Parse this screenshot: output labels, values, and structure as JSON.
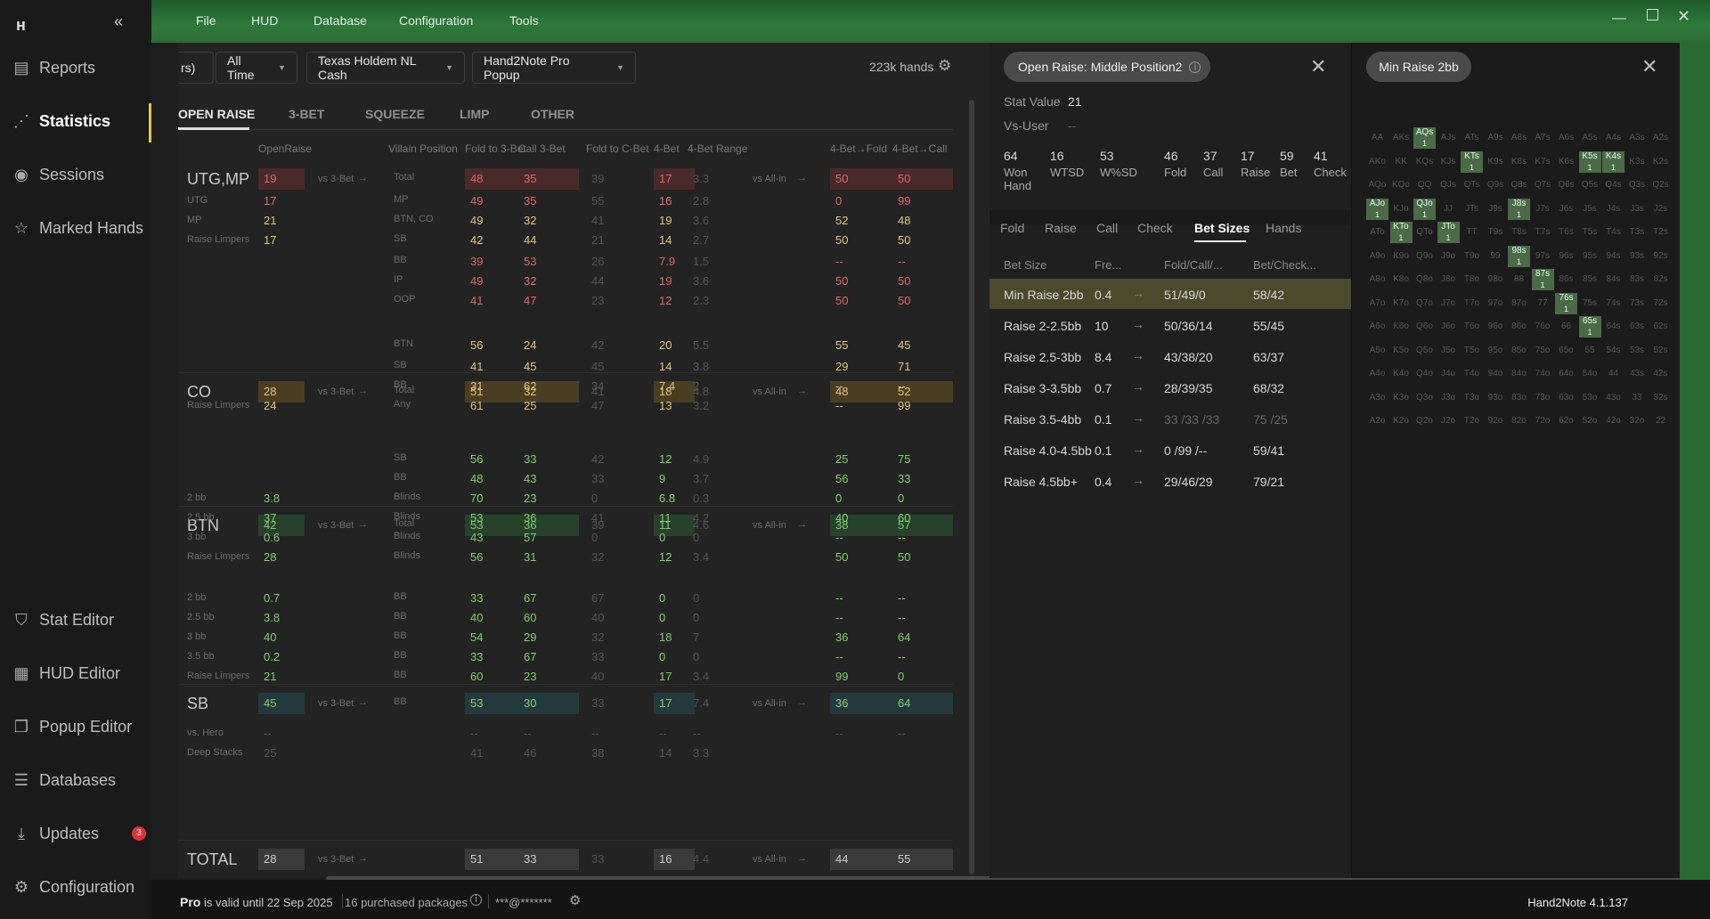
{
  "app": {
    "version": "Hand2Note 4.1.137"
  },
  "menu": [
    "File",
    "HUD",
    "Database",
    "Configuration",
    "Tools"
  ],
  "sidebar": {
    "items": [
      {
        "label": "Reports",
        "icon": "document-icon"
      },
      {
        "label": "Statistics",
        "icon": "share-icon"
      },
      {
        "label": "Sessions",
        "icon": "broadcast-icon"
      },
      {
        "label": "Marked Hands",
        "icon": "star-icon"
      },
      {
        "label": "Stat Editor",
        "icon": "filter-icon"
      },
      {
        "label": "HUD Editor",
        "icon": "layout-icon"
      },
      {
        "label": "Popup Editor",
        "icon": "popup-icon"
      },
      {
        "label": "Databases",
        "icon": "database-icon"
      },
      {
        "label": "Updates",
        "icon": "download-icon",
        "badge": "3"
      },
      {
        "label": "Configuration",
        "icon": "gear-icon"
      }
    ]
  },
  "filters": {
    "partial": "rs)",
    "time": "All Time",
    "game": "Texas Holdem NL Cash",
    "popup": "Hand2Note Pro Popup",
    "hands": "223k hands"
  },
  "tabs": [
    "OPEN RAISE",
    "3-BET",
    "SQUEEZE",
    "LIMP",
    "OTHER"
  ],
  "headers": {
    "openraise": "OpenRaise",
    "villain": "Villain Position",
    "f3b": "Fold to 3-Bet",
    "c3b": "Call 3-Bet",
    "fcb": "Fold to C-Bet",
    "fb": "4-Bet",
    "fbr": "4-Bet Range",
    "ff": "4-Bet→Fold",
    "fc": "4-Bet→Call"
  },
  "groups": [
    {
      "pos": "UTG,MP",
      "or": "19",
      "vs": "vs 3-Bet",
      "vp": "Total",
      "f3b": "48",
      "c3b": "35",
      "fcb": "39",
      "fb": "17",
      "fbr": "3.3",
      "ai": "vs All-in",
      "ff": "50",
      "fc": "50"
    },
    {
      "pos": "CO",
      "or": "28",
      "vs": "vs 3-Bet",
      "vp": "Total",
      "f3b": "51",
      "c3b": "32",
      "fcb": "41",
      "fb": "18",
      "fbr": "4.8",
      "ai": "vs All-in",
      "ff": "48",
      "fc": "52"
    },
    {
      "pos": "BTN",
      "or": "42",
      "vs": "vs 3-Bet",
      "vp": "Total",
      "f3b": "53",
      "c3b": "36",
      "fcb": "39",
      "fb": "11",
      "fbr": "4.6",
      "ai": "vs All-in",
      "ff": "38",
      "fc": "57"
    },
    {
      "pos": "SB",
      "or": "45",
      "vs": "vs 3-Bet",
      "vp": "BB",
      "f3b": "53",
      "c3b": "30",
      "fcb": "33",
      "fb": "17",
      "fbr": "7.4",
      "ai": "vs All-in",
      "ff": "36",
      "fc": "64"
    },
    {
      "pos": "TOTAL",
      "or": "28",
      "vs": "vs 3-Bet",
      "vp": "",
      "f3b": "51",
      "c3b": "33",
      "fcb": "33",
      "fb": "16",
      "fbr": "4.4",
      "ai": "vs All-in",
      "ff": "44",
      "fc": "55"
    }
  ],
  "subrows": [
    {
      "l": "UTG",
      "or": "17",
      "vp": "MP",
      "f3b": "49",
      "c3b": "35",
      "fcb": "55",
      "fb": "16",
      "fbr": "2.8",
      "ff": "0",
      "fc": "99"
    },
    {
      "l": "MP",
      "or": "21",
      "vp": "BTN, CO",
      "f3b": "49",
      "c3b": "32",
      "fcb": "41",
      "fb": "19",
      "fbr": "3.6",
      "ff": "52",
      "fc": "48"
    },
    {
      "l": "Raise Limpers",
      "or": "17",
      "vp": "SB",
      "f3b": "42",
      "c3b": "44",
      "fcb": "21",
      "fb": "14",
      "fbr": "2.7",
      "ff": "50",
      "fc": "50"
    },
    {
      "l": "",
      "or": "",
      "vp": "BB",
      "f3b": "39",
      "c3b": "53",
      "fcb": "26",
      "fb": "7.9",
      "fbr": "1.5",
      "ff": "--",
      "fc": "--"
    },
    {
      "l": "",
      "or": "",
      "vp": "IP",
      "f3b": "49",
      "c3b": "32",
      "fcb": "44",
      "fb": "19",
      "fbr": "3.6",
      "ff": "50",
      "fc": "50"
    },
    {
      "l": "",
      "or": "",
      "vp": "OOP",
      "f3b": "41",
      "c3b": "47",
      "fcb": "23",
      "fb": "12",
      "fbr": "2.3",
      "ff": "50",
      "fc": "50"
    },
    {
      "l": "",
      "or": "",
      "vp": "BTN",
      "f3b": "56",
      "c3b": "24",
      "fcb": "42",
      "fb": "20",
      "fbr": "5.5",
      "ff": "55",
      "fc": "45"
    },
    {
      "l": "",
      "or": "",
      "vp": "SB",
      "f3b": "41",
      "c3b": "45",
      "fcb": "45",
      "fb": "14",
      "fbr": "3.8",
      "ff": "29",
      "fc": "71"
    },
    {
      "l": "",
      "or": "",
      "vp": "BB",
      "f3b": "31",
      "c3b": "62",
      "fcb": "34",
      "fb": "7.4",
      "fbr": "2",
      "ff": "--",
      "fc": "--"
    },
    {
      "l": "Raise Limpers",
      "or": "24",
      "vp": "Any",
      "f3b": "61",
      "c3b": "25",
      "fcb": "47",
      "fb": "13",
      "fbr": "3.2",
      "ff": "--",
      "fc": "99"
    },
    {
      "l": "",
      "or": "",
      "vp": "SB",
      "f3b": "56",
      "c3b": "33",
      "fcb": "42",
      "fb": "12",
      "fbr": "4.9",
      "ff": "25",
      "fc": "75"
    },
    {
      "l": "",
      "or": "",
      "vp": "BB",
      "f3b": "48",
      "c3b": "43",
      "fcb": "33",
      "fb": "9",
      "fbr": "3.7",
      "ff": "56",
      "fc": "33"
    },
    {
      "l": "2 bb",
      "or": "3.8",
      "vp": "Blinds",
      "f3b": "70",
      "c3b": "23",
      "fcb": "0",
      "fb": "6.8",
      "fbr": "0.3",
      "ff": "0",
      "fc": "0"
    },
    {
      "l": "2.5 bb",
      "or": "37",
      "vp": "Blinds",
      "f3b": "53",
      "c3b": "36",
      "fcb": "41",
      "fb": "11",
      "fbr": "4.2",
      "ff": "40",
      "fc": "60"
    },
    {
      "l": "3 bb",
      "or": "0.6",
      "vp": "Blinds",
      "f3b": "43",
      "c3b": "57",
      "fcb": "0",
      "fb": "0",
      "fbr": "0",
      "ff": "--",
      "fc": "--"
    },
    {
      "l": "Raise Limpers",
      "or": "28",
      "vp": "Blinds",
      "f3b": "56",
      "c3b": "31",
      "fcb": "32",
      "fb": "12",
      "fbr": "3.4",
      "ff": "50",
      "fc": "50"
    },
    {
      "l": "2 bb",
      "or": "0.7",
      "vp": "BB",
      "f3b": "33",
      "c3b": "67",
      "fcb": "67",
      "fb": "0",
      "fbr": "0",
      "ff": "--",
      "fc": "--"
    },
    {
      "l": "2.5 bb",
      "or": "3.8",
      "vp": "BB",
      "f3b": "40",
      "c3b": "60",
      "fcb": "40",
      "fb": "0",
      "fbr": "0",
      "ff": "--",
      "fc": "--"
    },
    {
      "l": "3 bb",
      "or": "40",
      "vp": "BB",
      "f3b": "54",
      "c3b": "29",
      "fcb": "32",
      "fb": "18",
      "fbr": "7",
      "ff": "36",
      "fc": "64"
    },
    {
      "l": "3.5 bb",
      "or": "0.2",
      "vp": "BB",
      "f3b": "33",
      "c3b": "67",
      "fcb": "33",
      "fb": "0",
      "fbr": "0",
      "ff": "--",
      "fc": "--"
    },
    {
      "l": "Raise Limpers",
      "or": "21",
      "vp": "BB",
      "f3b": "60",
      "c3b": "23",
      "fcb": "40",
      "fb": "17",
      "fbr": "3.4",
      "ff": "99",
      "fc": "0"
    },
    {
      "l": "vs. Hero",
      "or": "--",
      "vp": "",
      "f3b": "--",
      "c3b": "--",
      "fcb": "--",
      "fb": "--",
      "fbr": "--",
      "ff": "--",
      "fc": "--"
    },
    {
      "l": "Deep Stacks",
      "or": "25",
      "vp": "",
      "f3b": "41",
      "c3b": "46",
      "fcb": "38",
      "fb": "14",
      "fbr": "3.3",
      "ff": "",
      "fc": ""
    }
  ],
  "panel2": {
    "title": "Open Raise: Middle Position2",
    "stat_value_label": "Stat Value",
    "stat_value": "21",
    "vs_user_label": "Vs-User",
    "vs_user": "--",
    "counts": [
      {
        "v": "64",
        "l": "Won Hand"
      },
      {
        "v": "16",
        "l": "WTSD"
      },
      {
        "v": "53",
        "l": "W%SD"
      },
      {
        "v": "46",
        "l": "Fold"
      },
      {
        "v": "37",
        "l": "Call"
      },
      {
        "v": "17",
        "l": "Raise"
      },
      {
        "v": "59",
        "l": "Bet"
      },
      {
        "v": "41",
        "l": "Check"
      }
    ],
    "tabs": [
      "Fold",
      "Raise",
      "Call",
      "Check",
      "Bet Sizes",
      "Hands"
    ],
    "cols": [
      "Bet Size",
      "Fre...",
      "Fold/Call/...",
      "Bet/Check..."
    ],
    "rows": [
      {
        "size": "Min Raise 2bb",
        "fre": "0.4",
        "fcr": "51/49/0",
        "bc": "58/42"
      },
      {
        "size": "Raise 2-2.5bb",
        "fre": "10",
        "fcr": "50/36/14",
        "bc": "55/45"
      },
      {
        "size": "Raise 2.5-3bb",
        "fre": "8.4",
        "fcr": "43/38/20",
        "bc": "63/37"
      },
      {
        "size": "Raise 3-3.5bb",
        "fre": "0.7",
        "fcr": "28/39/35",
        "bc": "68/32"
      },
      {
        "size": "Raise 3.5-4bb",
        "fre": "0.1",
        "fcr": "33 /33 /33",
        "bc": "75 /25"
      },
      {
        "size": "Raise 4.0-4.5bb",
        "fre": "0.1",
        "fcr": "0 /99 /--",
        "bc": "59/41"
      },
      {
        "size": "Raise 4.5bb+",
        "fre": "0.4",
        "fcr": "29/46/29",
        "bc": "79/21"
      }
    ]
  },
  "panel3": {
    "title": "Min Raise 2bb",
    "grid": [
      "AA",
      "AKs",
      "AQs",
      "AJs",
      "ATs",
      "A9s",
      "A8s",
      "A7s",
      "A6s",
      "A5s",
      "A4s",
      "A3s",
      "A2s",
      "AKo",
      "KK",
      "KQs",
      "KJs",
      "KTs",
      "K9s",
      "K8s",
      "K7s",
      "K6s",
      "K5s",
      "K4s",
      "K3s",
      "K2s",
      "AQo",
      "KQo",
      "QQ",
      "QJs",
      "QTs",
      "Q9s",
      "Q8s",
      "Q7s",
      "Q6s",
      "Q5s",
      "Q4s",
      "Q3s",
      "Q2s",
      "AJo",
      "KJo",
      "QJo",
      "JJ",
      "JTs",
      "J9s",
      "J8s",
      "J7s",
      "J6s",
      "J5s",
      "J4s",
      "J3s",
      "J2s",
      "ATo",
      "KTo",
      "QTo",
      "JTo",
      "TT",
      "T9s",
      "T8s",
      "T7s",
      "T6s",
      "T5s",
      "T4s",
      "T3s",
      "T2s",
      "A9o",
      "K9o",
      "Q9o",
      "J9o",
      "T9o",
      "99",
      "98s",
      "97s",
      "96s",
      "95s",
      "94s",
      "93s",
      "92s",
      "A8o",
      "K8o",
      "Q8o",
      "J8o",
      "T8o",
      "98o",
      "88",
      "87s",
      "86s",
      "85s",
      "84s",
      "83s",
      "82s",
      "A7o",
      "K7o",
      "Q7o",
      "J7o",
      "T7o",
      "97o",
      "87o",
      "77",
      "76s",
      "75s",
      "74s",
      "73s",
      "72s",
      "A6o",
      "K6o",
      "Q6o",
      "J6o",
      "T6o",
      "96o",
      "86o",
      "76o",
      "66",
      "65s",
      "64s",
      "63s",
      "62s",
      "A5o",
      "K5o",
      "Q5o",
      "J5o",
      "T5o",
      "95o",
      "85o",
      "75o",
      "65o",
      "55",
      "54s",
      "53s",
      "52s",
      "A4o",
      "K4o",
      "Q4o",
      "J4o",
      "T4o",
      "94o",
      "84o",
      "74o",
      "64o",
      "54o",
      "44",
      "43s",
      "42s",
      "A3o",
      "K3o",
      "Q3o",
      "J3o",
      "T3o",
      "93o",
      "83o",
      "73o",
      "63o",
      "53o",
      "43o",
      "33",
      "32s",
      "A2o",
      "K2o",
      "Q2o",
      "J2o",
      "T2o",
      "92o",
      "82o",
      "72o",
      "62o",
      "52o",
      "42o",
      "32o",
      "22"
    ],
    "highlighted": [
      "AQs",
      "KTs",
      "K5s",
      "K4s",
      "AJo",
      "QJo",
      "J8s",
      "KTo",
      "JTo",
      "98s",
      "87s",
      "76s",
      "65s"
    ],
    "hl_count": "1"
  },
  "status": {
    "pro": "Pro",
    "valid": "is valid until 22 Sep 2025",
    "packages": "16 purchased packages",
    "user": "***@*******"
  }
}
